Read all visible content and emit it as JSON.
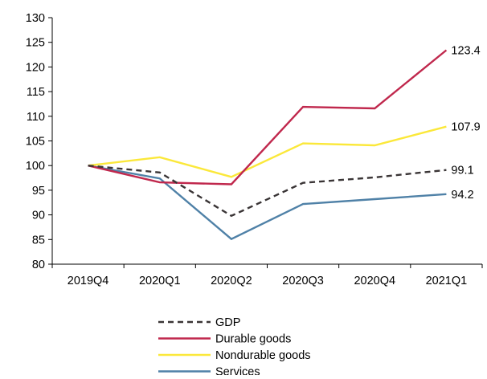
{
  "chart_data": {
    "type": "line",
    "title": "",
    "xlabel": "",
    "ylabel": "",
    "categories": [
      "2019Q4",
      "2020Q1",
      "2020Q2",
      "2020Q3",
      "2020Q4",
      "2021Q1"
    ],
    "ylim": [
      80,
      130
    ],
    "yticks": [
      80,
      85,
      90,
      95,
      100,
      105,
      110,
      115,
      120,
      125,
      130
    ],
    "grid": false,
    "legend_position": "bottom-center",
    "series": [
      {
        "name": "GDP",
        "values": [
          100,
          98.6,
          89.8,
          96.5,
          97.6,
          99.1
        ],
        "color": "#3a3536",
        "dash": "dashed",
        "end_label": "99.1"
      },
      {
        "name": "Durable goods",
        "values": [
          100,
          96.6,
          96.2,
          111.9,
          111.6,
          123.4
        ],
        "color": "#c0284d",
        "dash": "solid",
        "end_label": "123.4"
      },
      {
        "name": "Nondurable goods",
        "values": [
          100,
          101.7,
          97.7,
          104.5,
          104.1,
          107.9
        ],
        "color": "#fbe83a",
        "dash": "solid",
        "end_label": "107.9"
      },
      {
        "name": "Services",
        "values": [
          100,
          97.4,
          85.1,
          92.2,
          93.2,
          94.2
        ],
        "color": "#4f81a7",
        "dash": "solid",
        "end_label": "94.2"
      }
    ]
  }
}
